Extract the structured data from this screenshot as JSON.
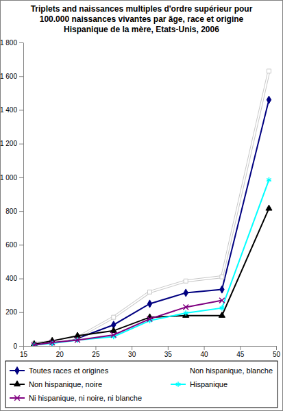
{
  "chart_data": {
    "type": "line",
    "title": "Triplets and naissances multiples d'ordre supérieur pour 100.000 naissances vivantes par âge, race et origine Hispanique de la mère, Etats-Unis, 2006",
    "x": [
      16.5,
      19,
      22.5,
      27.5,
      32.5,
      37.5,
      42.5,
      49
    ],
    "series": [
      {
        "name": "Toutes races et origines",
        "color": "#000080",
        "marker": "diamond",
        "line_style": "solid",
        "values": [
          10,
          20,
          45,
          125,
          250,
          315,
          335,
          1460
        ]
      },
      {
        "name": "Non hispanique, blanche",
        "color": "#ffffff",
        "marker": "square",
        "line_style": "solid",
        "values": [
          15,
          25,
          50,
          170,
          320,
          385,
          410,
          1630
        ]
      },
      {
        "name": "Non hispanique, noire",
        "color": "#000000",
        "marker": "triangle",
        "line_style": "solid",
        "values": [
          10,
          30,
          60,
          90,
          170,
          180,
          180,
          815
        ]
      },
      {
        "name": "Hispanique",
        "color": "#00ffff",
        "marker": "asterisk",
        "line_style": "solid",
        "values": [
          5,
          15,
          35,
          55,
          150,
          195,
          225,
          985
        ]
      },
      {
        "name": "Ni hispanique, ni noire, ni blanche",
        "color": "#800080",
        "marker": "x",
        "line_style": "solid",
        "values": [
          5,
          20,
          35,
          65,
          160,
          230,
          270,
          null
        ]
      }
    ],
    "xlim": [
      15,
      50
    ],
    "xticks": [
      15,
      20,
      25,
      30,
      35,
      40,
      45,
      50
    ],
    "ylim": [
      0,
      1800
    ],
    "yticks": [
      0,
      200,
      400,
      600,
      800,
      {
        "value": 1000,
        "label": "1 000"
      },
      {
        "value": 1200,
        "label": "1 200"
      },
      {
        "value": 1400,
        "label": "1 400"
      },
      {
        "value": 1600,
        "label": "1 600"
      },
      {
        "value": 1800,
        "label": "1 800"
      }
    ],
    "grid": false,
    "legend": "bottom"
  }
}
